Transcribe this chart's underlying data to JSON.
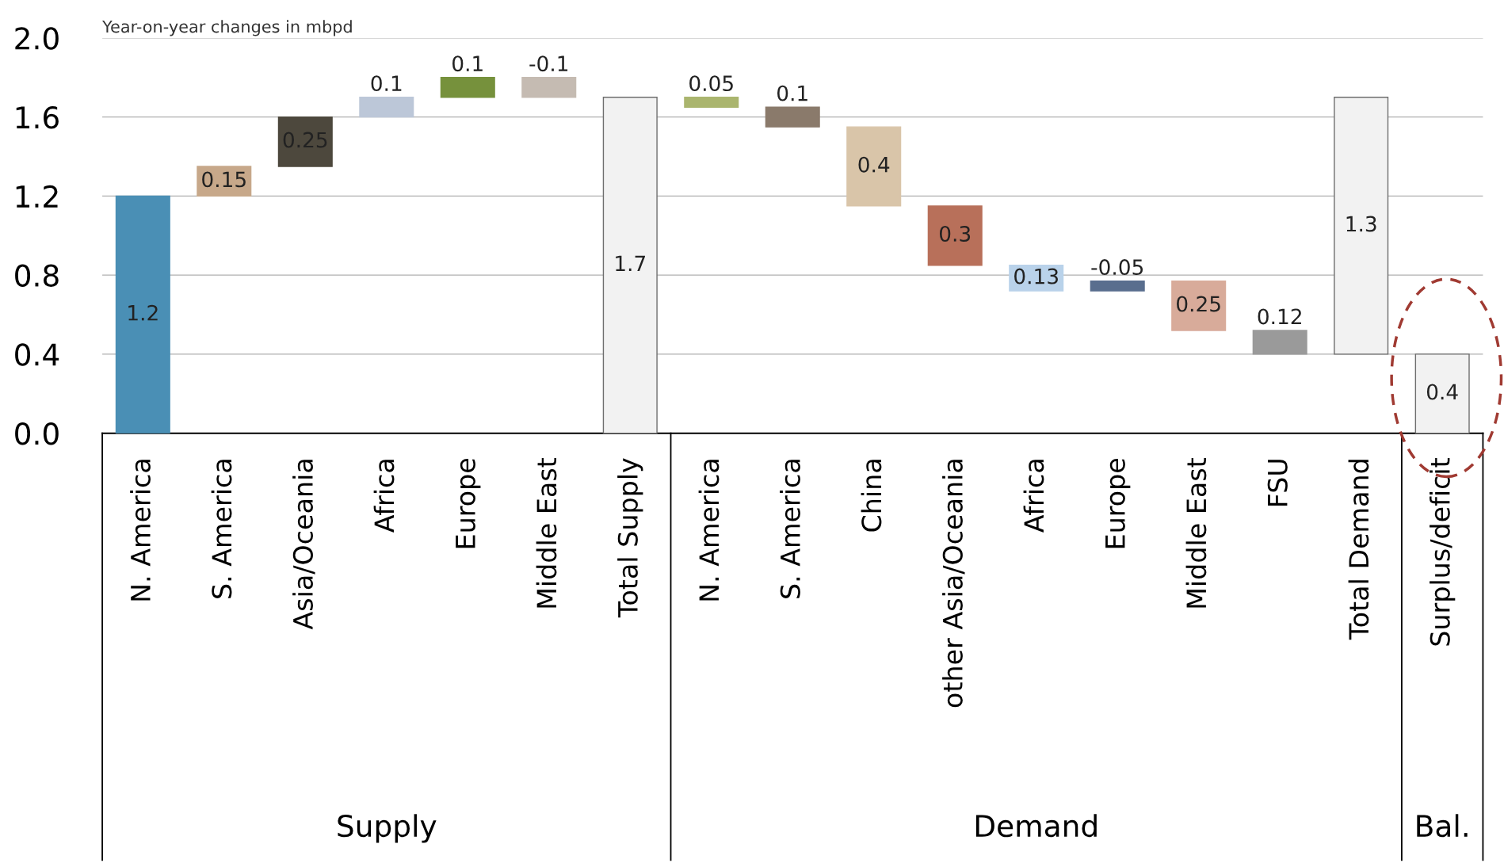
{
  "chart_data": {
    "type": "bar",
    "ylabel": "Year-on-year changes in mbpd",
    "categories": [
      "N. America",
      "S. America",
      "Asia/Oceania",
      "Africa",
      "Europe",
      "Middle East",
      "Total Supply",
      "N. America",
      "S. America",
      "China",
      "other Asia/Oceania",
      "Africa",
      "Europe",
      "Middle East",
      "FSU",
      "Total Demand",
      "Surplus/deficit"
    ],
    "values": [
      1.2,
      0.15,
      0.25,
      0.1,
      0.1,
      -0.1,
      1.7,
      0.05,
      0.1,
      0.4,
      0.3,
      0.13,
      -0.05,
      0.25,
      0.12,
      1.3,
      0.4
    ],
    "base": [
      0,
      1.2,
      1.35,
      1.6,
      1.7,
      1.8,
      0,
      1.65,
      1.55,
      1.15,
      0.85,
      0.72,
      0.77,
      0.52,
      0.4,
      0.4,
      0
    ],
    "colors": [
      "#4a8fb5",
      "#c7a88a",
      "#4d483d",
      "#bcc7d8",
      "#76913c",
      "#c5bbb2",
      "#f2f2f2",
      "#aab56e",
      "#8a7a6b",
      "#d9c5a9",
      "#b8705a",
      "#b9d2ea",
      "#596e8e",
      "#d8ab9a",
      "#9a9a9a",
      "#f2f2f2",
      "#f2f2f2"
    ],
    "data_labels": true,
    "ylim": [
      0,
      2.0
    ],
    "yticks": [
      {
        "value": 0,
        "label": "0.0"
      },
      {
        "value": 0.4,
        "label": "0.4"
      },
      {
        "value": 0.8,
        "label": "0.8"
      },
      {
        "value": 1.2,
        "label": "1.2"
      },
      {
        "value": 1.6,
        "label": "1.6"
      },
      {
        "value": 2.0,
        "label": "2.0"
      }
    ],
    "grid": "y",
    "annotations": [
      "Supply",
      "Demand",
      "Bal."
    ]
  }
}
